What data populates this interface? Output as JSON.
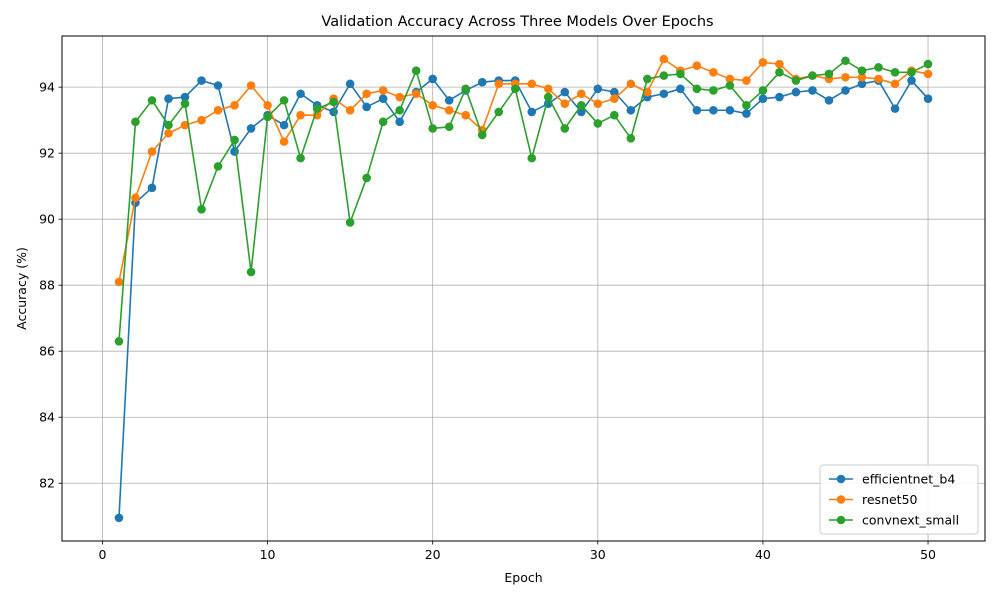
{
  "chart_data": {
    "type": "line",
    "title": "Validation Accuracy Across Three Models Over Epochs",
    "xlabel": "Epoch",
    "ylabel": "Accuracy (%)",
    "xlim": [
      -2.45,
      53.45
    ],
    "ylim": [
      80.25,
      95.55
    ],
    "xticks": [
      0,
      10,
      20,
      30,
      40,
      50
    ],
    "yticks": [
      82,
      84,
      86,
      88,
      90,
      92,
      94
    ],
    "grid": true,
    "legend_position": "lower-right",
    "x": [
      1,
      2,
      3,
      4,
      5,
      6,
      7,
      8,
      9,
      10,
      11,
      12,
      13,
      14,
      15,
      16,
      17,
      18,
      19,
      20,
      21,
      22,
      23,
      24,
      25,
      26,
      27,
      28,
      29,
      30,
      31,
      32,
      33,
      34,
      35,
      36,
      37,
      38,
      39,
      40,
      41,
      42,
      43,
      44,
      45,
      46,
      47,
      48,
      49,
      50
    ],
    "series": [
      {
        "name": "efficientnet_b4",
        "color": "#1f77b4",
        "values": [
          80.95,
          90.5,
          90.95,
          93.65,
          93.7,
          94.2,
          94.05,
          92.05,
          92.75,
          93.15,
          92.85,
          93.8,
          93.45,
          93.25,
          94.1,
          93.4,
          93.65,
          92.95,
          93.85,
          94.25,
          93.6,
          93.9,
          94.15,
          94.2,
          94.2,
          93.25,
          93.5,
          93.85,
          93.25,
          93.95,
          93.85,
          93.3,
          93.7,
          93.8,
          93.95,
          93.3,
          93.3,
          93.3,
          93.2,
          93.65,
          93.7,
          93.85,
          93.9,
          93.6,
          93.9,
          94.1,
          94.2,
          93.35,
          94.2,
          93.65
        ]
      },
      {
        "name": "resnet50",
        "color": "#ff7f0e",
        "values": [
          88.1,
          90.65,
          92.05,
          92.6,
          92.85,
          93.0,
          93.3,
          93.45,
          94.05,
          93.45,
          92.35,
          93.15,
          93.15,
          93.65,
          93.3,
          93.8,
          93.9,
          93.7,
          93.8,
          93.45,
          93.3,
          93.15,
          92.7,
          94.1,
          94.1,
          94.1,
          93.95,
          93.5,
          93.8,
          93.5,
          93.65,
          94.1,
          93.85,
          94.85,
          94.5,
          94.65,
          94.45,
          94.25,
          94.2,
          94.75,
          94.7,
          94.25,
          94.35,
          94.25,
          94.3,
          94.3,
          94.25,
          94.1,
          94.5,
          94.4
        ]
      },
      {
        "name": "convnext_small",
        "color": "#2ca02c",
        "values": [
          86.3,
          92.95,
          93.6,
          92.85,
          93.5,
          90.3,
          91.6,
          92.4,
          88.4,
          93.1,
          93.6,
          91.85,
          93.35,
          93.55,
          89.9,
          91.25,
          92.95,
          93.3,
          94.5,
          92.75,
          92.8,
          93.95,
          92.55,
          93.25,
          93.95,
          91.85,
          93.7,
          92.75,
          93.45,
          92.9,
          93.15,
          92.45,
          94.25,
          94.35,
          94.4,
          93.95,
          93.9,
          94.05,
          93.45,
          93.9,
          94.45,
          94.2,
          94.35,
          94.4,
          94.8,
          94.5,
          94.6,
          94.45,
          94.45,
          94.7
        ]
      }
    ]
  }
}
